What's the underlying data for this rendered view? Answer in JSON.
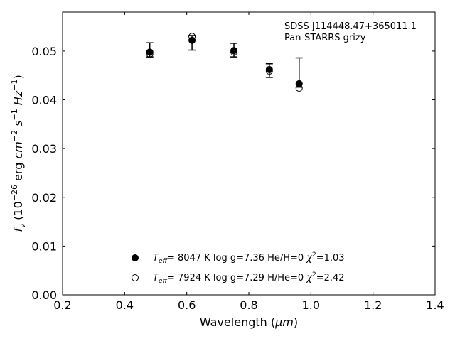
{
  "chart_data": {
    "type": "scatter",
    "xlabel": {
      "main": "Wavelength (",
      "unit": "μm",
      "close": ")"
    },
    "ylabel": {
      "f": "f",
      "nu": "ν",
      "open": " (10",
      "exp1": "−26",
      "mid": " erg ",
      "cm": "cm",
      "exp2": "−2",
      "s": " s",
      "exp3": "−1",
      "hz": " Hz",
      "exp4": "−1",
      "close": ")"
    },
    "xlim": [
      0.2,
      1.4
    ],
    "ylim": [
      0.0,
      0.058
    ],
    "xticks": [
      0.2,
      0.4,
      0.6,
      0.8,
      1.0,
      1.2,
      1.4
    ],
    "xtick_labels": [
      "0.2",
      "0.4",
      "0.6",
      "0.8",
      "1.0",
      "1.2",
      "1.4"
    ],
    "yticks": [
      0.0,
      0.01,
      0.02,
      0.03,
      0.04,
      0.05
    ],
    "ytick_labels": [
      "0.00",
      "0.01",
      "0.02",
      "0.03",
      "0.04",
      "0.05"
    ],
    "annotation": [
      "SDSS J114448.47+365011.1",
      "Pan-STARRS grizy"
    ],
    "observed": {
      "x": [
        0.481,
        0.617,
        0.752,
        0.866,
        0.962
      ],
      "y": [
        0.0502,
        0.0517,
        0.0502,
        0.046,
        0.0434
      ],
      "yerr_low": [
        0.0014,
        0.0015,
        0.0014,
        0.0014,
        0.0008
      ],
      "yerr_high": [
        0.0015,
        0.0015,
        0.0014,
        0.0014,
        0.0052
      ]
    },
    "series": [
      {
        "name": {
          "T": "T",
          "sub": "eff",
          "rest": "=  8047 K  log g=7.36  He/H=0  ",
          "chi": "χ",
          "sup": "2",
          "end": "=1.03"
        },
        "marker": "filled-circle",
        "x": [
          0.481,
          0.617,
          0.752,
          0.866,
          0.962
        ],
        "y": [
          0.0498,
          0.0522,
          0.0501,
          0.0462,
          0.0433
        ]
      },
      {
        "name": {
          "T": "T",
          "sub": "eff",
          "rest": "=  7924 K  log g=7.29  H/He=0  ",
          "chi": "χ",
          "sup": "2",
          "end": "=2.42"
        },
        "marker": "open-circle",
        "x": [
          0.481,
          0.617,
          0.752,
          0.866,
          0.962
        ],
        "y": [
          0.0494,
          0.053,
          0.0498,
          0.0459,
          0.0424
        ]
      }
    ],
    "legend_position": "lower-center",
    "grid": false,
    "colors": {
      "marker": "#000000",
      "errorbar": "#000000",
      "axes": "#000000"
    }
  }
}
